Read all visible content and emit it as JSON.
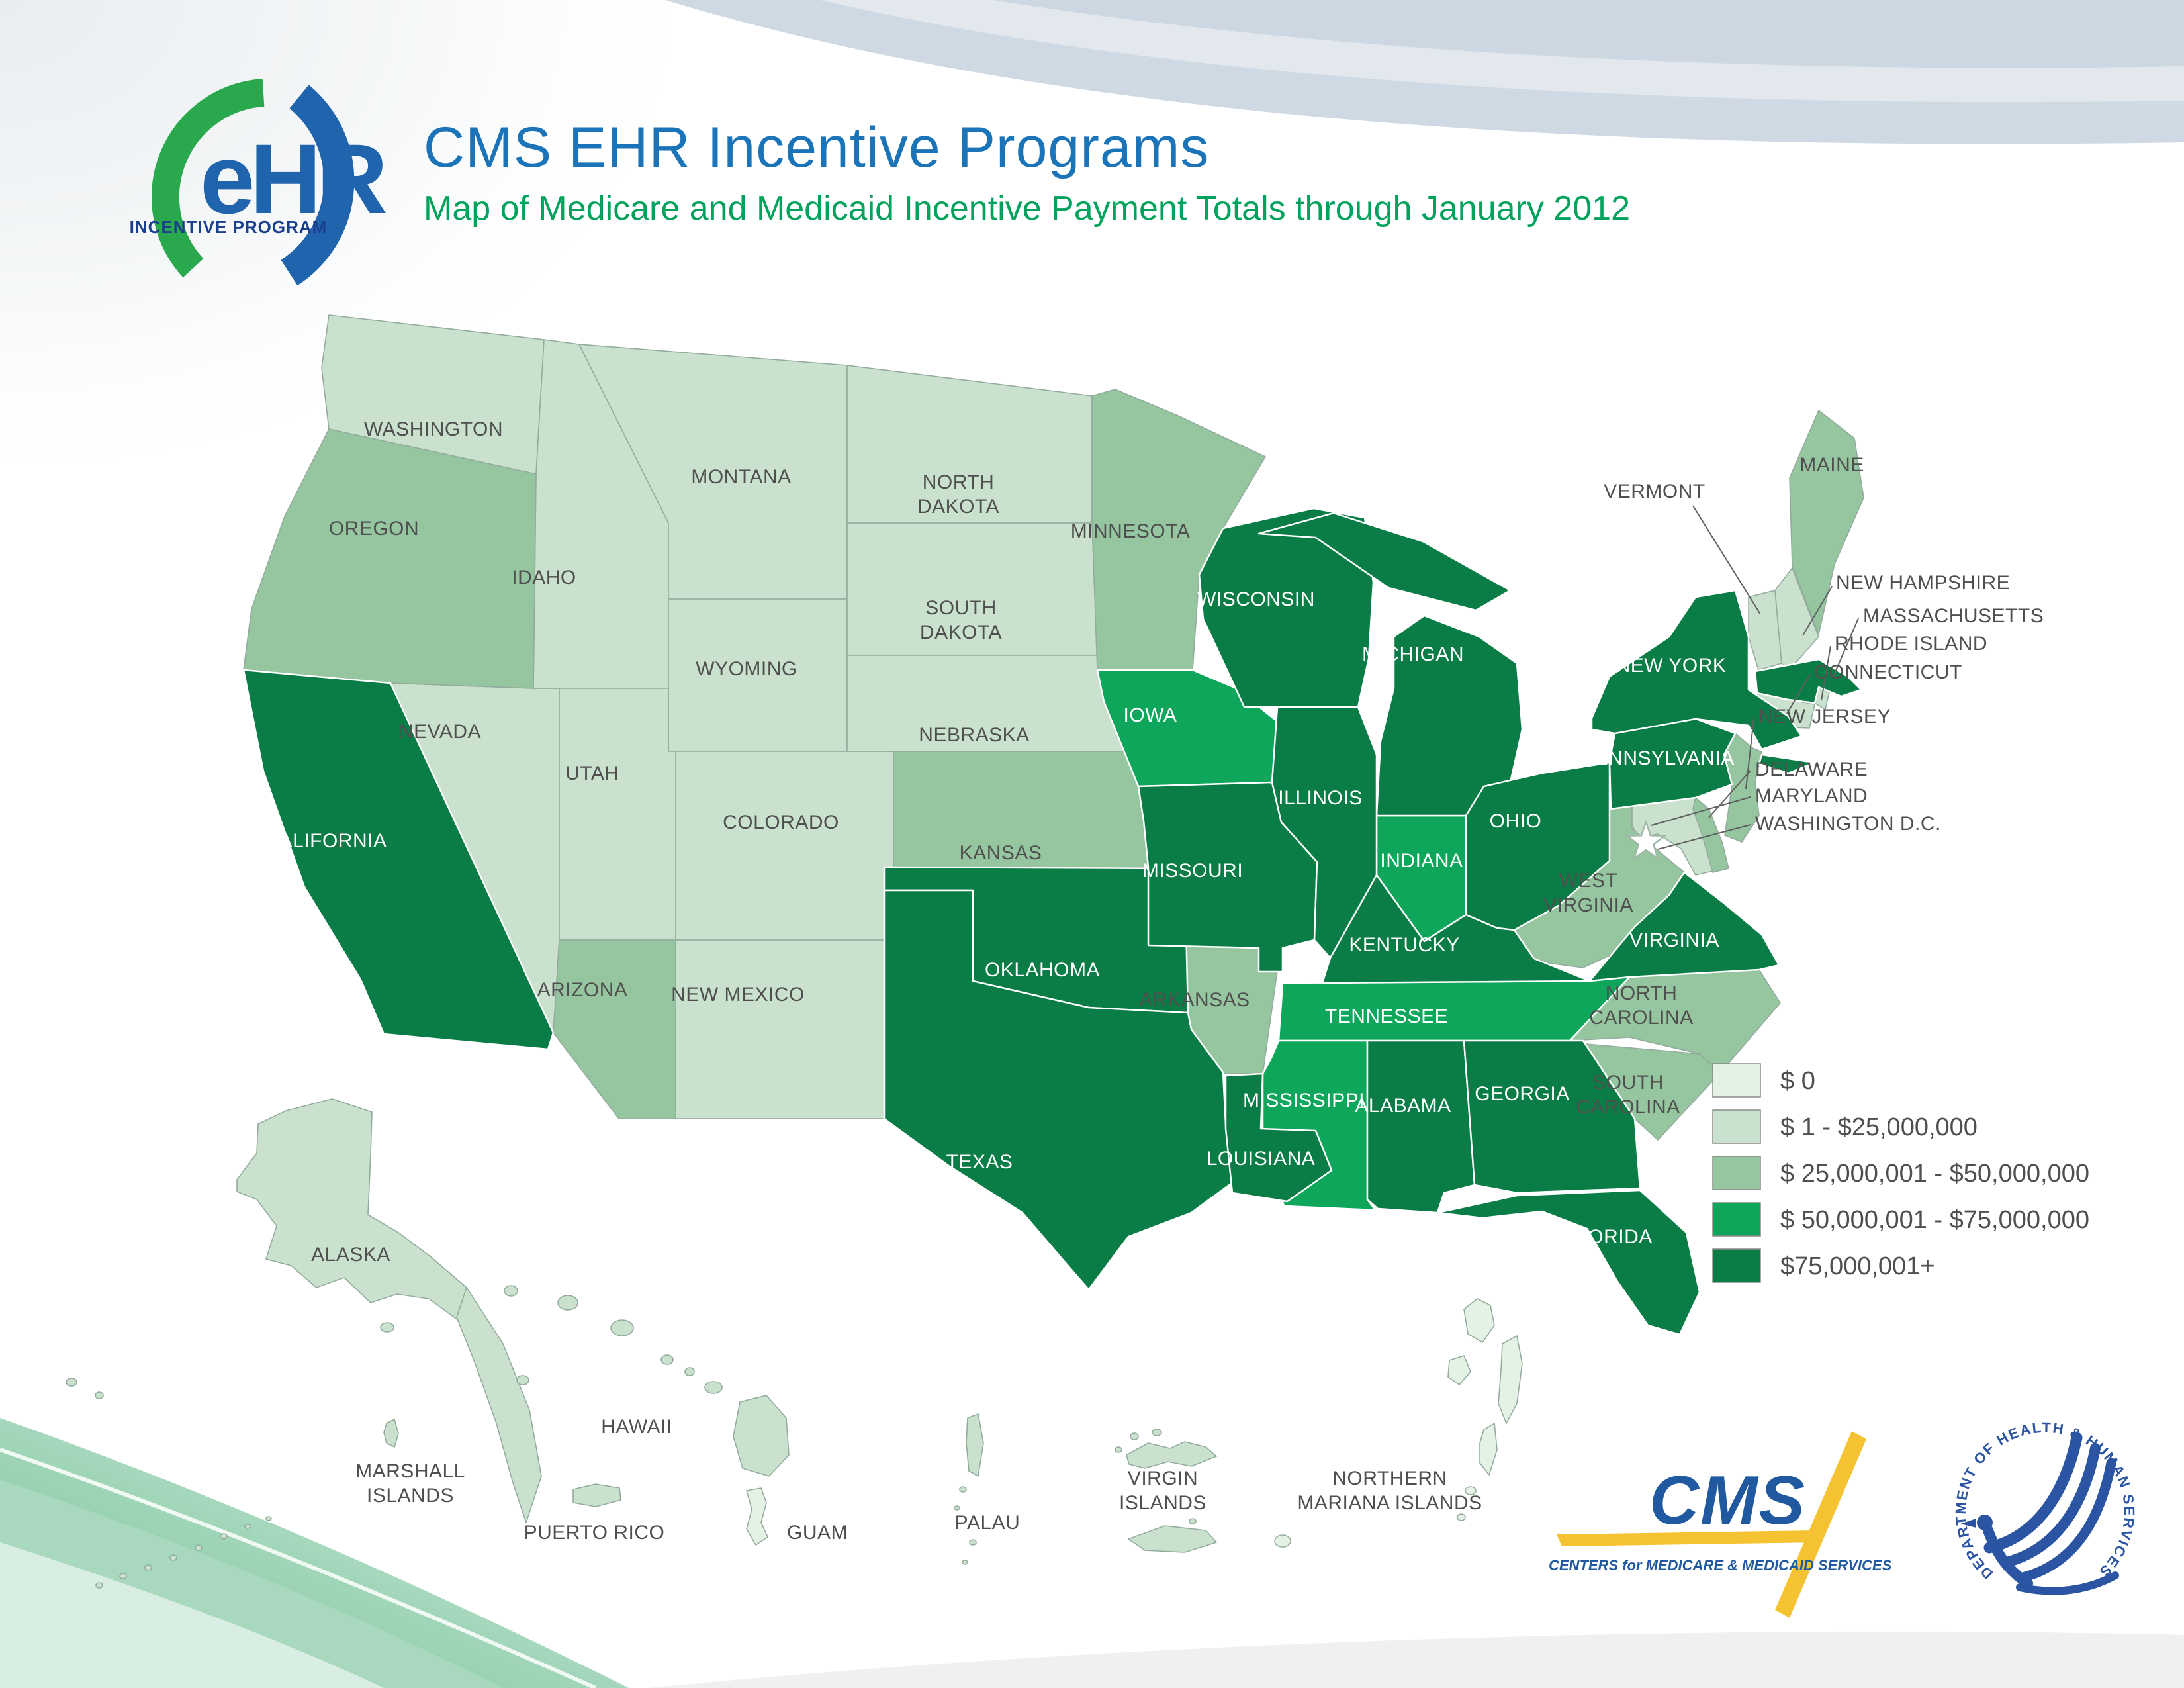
{
  "header": {
    "logo_monogram": "eHR",
    "logo_caption": "INCENTIVE PROGRAM",
    "title": "CMS EHR Incentive Programs",
    "subtitle": "Map of Medicare and Medicaid Incentive Payment Totals through January 2012"
  },
  "legend": {
    "items": [
      {
        "label": "$ 0",
        "color": "#e4f1e5"
      },
      {
        "label": "$ 1 - $25,000,000",
        "color": "#c9e1cd"
      },
      {
        "label": "$ 25,000,001 - $50,000,000",
        "color": "#95c6a0"
      },
      {
        "label": "$ 50,000,001 - $75,000,000",
        "color": "#0ea65b"
      },
      {
        "label": "$75,000,001+",
        "color": "#0a7c46"
      }
    ]
  },
  "map": {
    "dc_label": "WASHINGTON D.C.",
    "states": [
      {
        "id": "WA",
        "name": "WASHINGTON",
        "tier": 2
      },
      {
        "id": "OR",
        "name": "OREGON",
        "tier": 3
      },
      {
        "id": "CA",
        "name": "CALIFORNIA",
        "tier": 5
      },
      {
        "id": "NV",
        "name": "NEVADA",
        "tier": 2
      },
      {
        "id": "ID",
        "name": "IDAHO",
        "tier": 2
      },
      {
        "id": "MT",
        "name": "MONTANA",
        "tier": 2
      },
      {
        "id": "WY",
        "name": "WYOMING",
        "tier": 2
      },
      {
        "id": "UT",
        "name": "UTAH",
        "tier": 2
      },
      {
        "id": "CO",
        "name": "COLORADO",
        "tier": 2
      },
      {
        "id": "AZ",
        "name": "ARIZONA",
        "tier": 3
      },
      {
        "id": "NM",
        "name": "NEW MEXICO",
        "tier": 2
      },
      {
        "id": "ND",
        "name": "NORTH DAKOTA",
        "tier": 2
      },
      {
        "id": "SD",
        "name": "SOUTH DAKOTA",
        "tier": 2
      },
      {
        "id": "NE",
        "name": "NEBRASKA",
        "tier": 2
      },
      {
        "id": "KS",
        "name": "KANSAS",
        "tier": 3
      },
      {
        "id": "OK",
        "name": "OKLAHOMA",
        "tier": 5
      },
      {
        "id": "TX",
        "name": "TEXAS",
        "tier": 5
      },
      {
        "id": "MN",
        "name": "MINNESOTA",
        "tier": 3
      },
      {
        "id": "IA",
        "name": "IOWA",
        "tier": 4
      },
      {
        "id": "MO",
        "name": "MISSOURI",
        "tier": 5
      },
      {
        "id": "AR",
        "name": "ARKANSAS",
        "tier": 3
      },
      {
        "id": "LA",
        "name": "LOUISIANA",
        "tier": 5
      },
      {
        "id": "WI",
        "name": "WISCONSIN",
        "tier": 5
      },
      {
        "id": "MI",
        "name": "MICHIGAN",
        "tier": 5
      },
      {
        "id": "IL",
        "name": "ILLINOIS",
        "tier": 5
      },
      {
        "id": "IN",
        "name": "INDIANA",
        "tier": 4
      },
      {
        "id": "OH",
        "name": "OHIO",
        "tier": 5
      },
      {
        "id": "KY",
        "name": "KENTUCKY",
        "tier": 5
      },
      {
        "id": "TN",
        "name": "TENNESSEE",
        "tier": 4
      },
      {
        "id": "MS",
        "name": "MISSISSIPPI",
        "tier": 4
      },
      {
        "id": "AL",
        "name": "ALABAMA",
        "tier": 5
      },
      {
        "id": "GA",
        "name": "GEORGIA",
        "tier": 5
      },
      {
        "id": "FL",
        "name": "FLORIDA",
        "tier": 5
      },
      {
        "id": "SC",
        "name": "SOUTH CAROLINA",
        "tier": 3
      },
      {
        "id": "NC",
        "name": "NORTH CAROLINA",
        "tier": 3
      },
      {
        "id": "VA",
        "name": "VIRGINIA",
        "tier": 5
      },
      {
        "id": "WV",
        "name": "WEST VIRGINIA",
        "tier": 3
      },
      {
        "id": "PA",
        "name": "PENNSYLVANIA",
        "tier": 5
      },
      {
        "id": "NY",
        "name": "NEW YORK",
        "tier": 5
      },
      {
        "id": "NJ",
        "name": "NEW JERSEY",
        "tier": 3
      },
      {
        "id": "DE",
        "name": "DELAWARE",
        "tier": 3
      },
      {
        "id": "MD",
        "name": "MARYLAND",
        "tier": 2
      },
      {
        "id": "VT",
        "name": "VERMONT",
        "tier": 2
      },
      {
        "id": "NH",
        "name": "NEW HAMPSHIRE",
        "tier": 2
      },
      {
        "id": "MA",
        "name": "MASSACHUSETTS",
        "tier": 5
      },
      {
        "id": "RI",
        "name": "RHODE ISLAND",
        "tier": 2
      },
      {
        "id": "CT",
        "name": "CONNECTICUT",
        "tier": 2
      },
      {
        "id": "ME",
        "name": "MAINE",
        "tier": 3
      },
      {
        "id": "AK",
        "name": "ALASKA",
        "tier": 2
      },
      {
        "id": "HI",
        "name": "HAWAII",
        "tier": 2
      }
    ],
    "territories": [
      {
        "id": "MH",
        "name": "MARSHALL ISLANDS",
        "tier": 2
      },
      {
        "id": "PR",
        "name": "PUERTO RICO",
        "tier": 2
      },
      {
        "id": "GU",
        "name": "GUAM",
        "tier": 1
      },
      {
        "id": "PW",
        "name": "PALAU",
        "tier": 2
      },
      {
        "id": "VI",
        "name": "VIRGIN ISLANDS",
        "tier": 2
      },
      {
        "id": "MP",
        "name": "NORTHERN MARIANA ISLANDS",
        "tier": 1
      },
      {
        "id": "AS1",
        "name": "",
        "tier": 1
      },
      {
        "id": "AS2",
        "name": "",
        "tier": 1
      },
      {
        "id": "MID",
        "name": "",
        "tier": 1
      }
    ]
  },
  "footer": {
    "cms_wordmark": "CMS",
    "cms_caption": "CENTERS for MEDICARE & MEDICAID SERVICES",
    "hhs_ring_text": "DEPARTMENT OF HEALTH & HUMAN SERVICES · USA"
  },
  "palette": {
    "title_blue": "#1b74b8",
    "subtitle_green": "#00a25c",
    "cms_blue": "#20599f",
    "cms_yellow": "#f5c331",
    "hhs_blue": "#2b55a3",
    "label_dark": "#4f4f4f",
    "border_light": "#93ab9d",
    "logo_green": "#2aa84e",
    "logo_blue": "#2064ad",
    "logo_navy": "#1b3f8f"
  }
}
